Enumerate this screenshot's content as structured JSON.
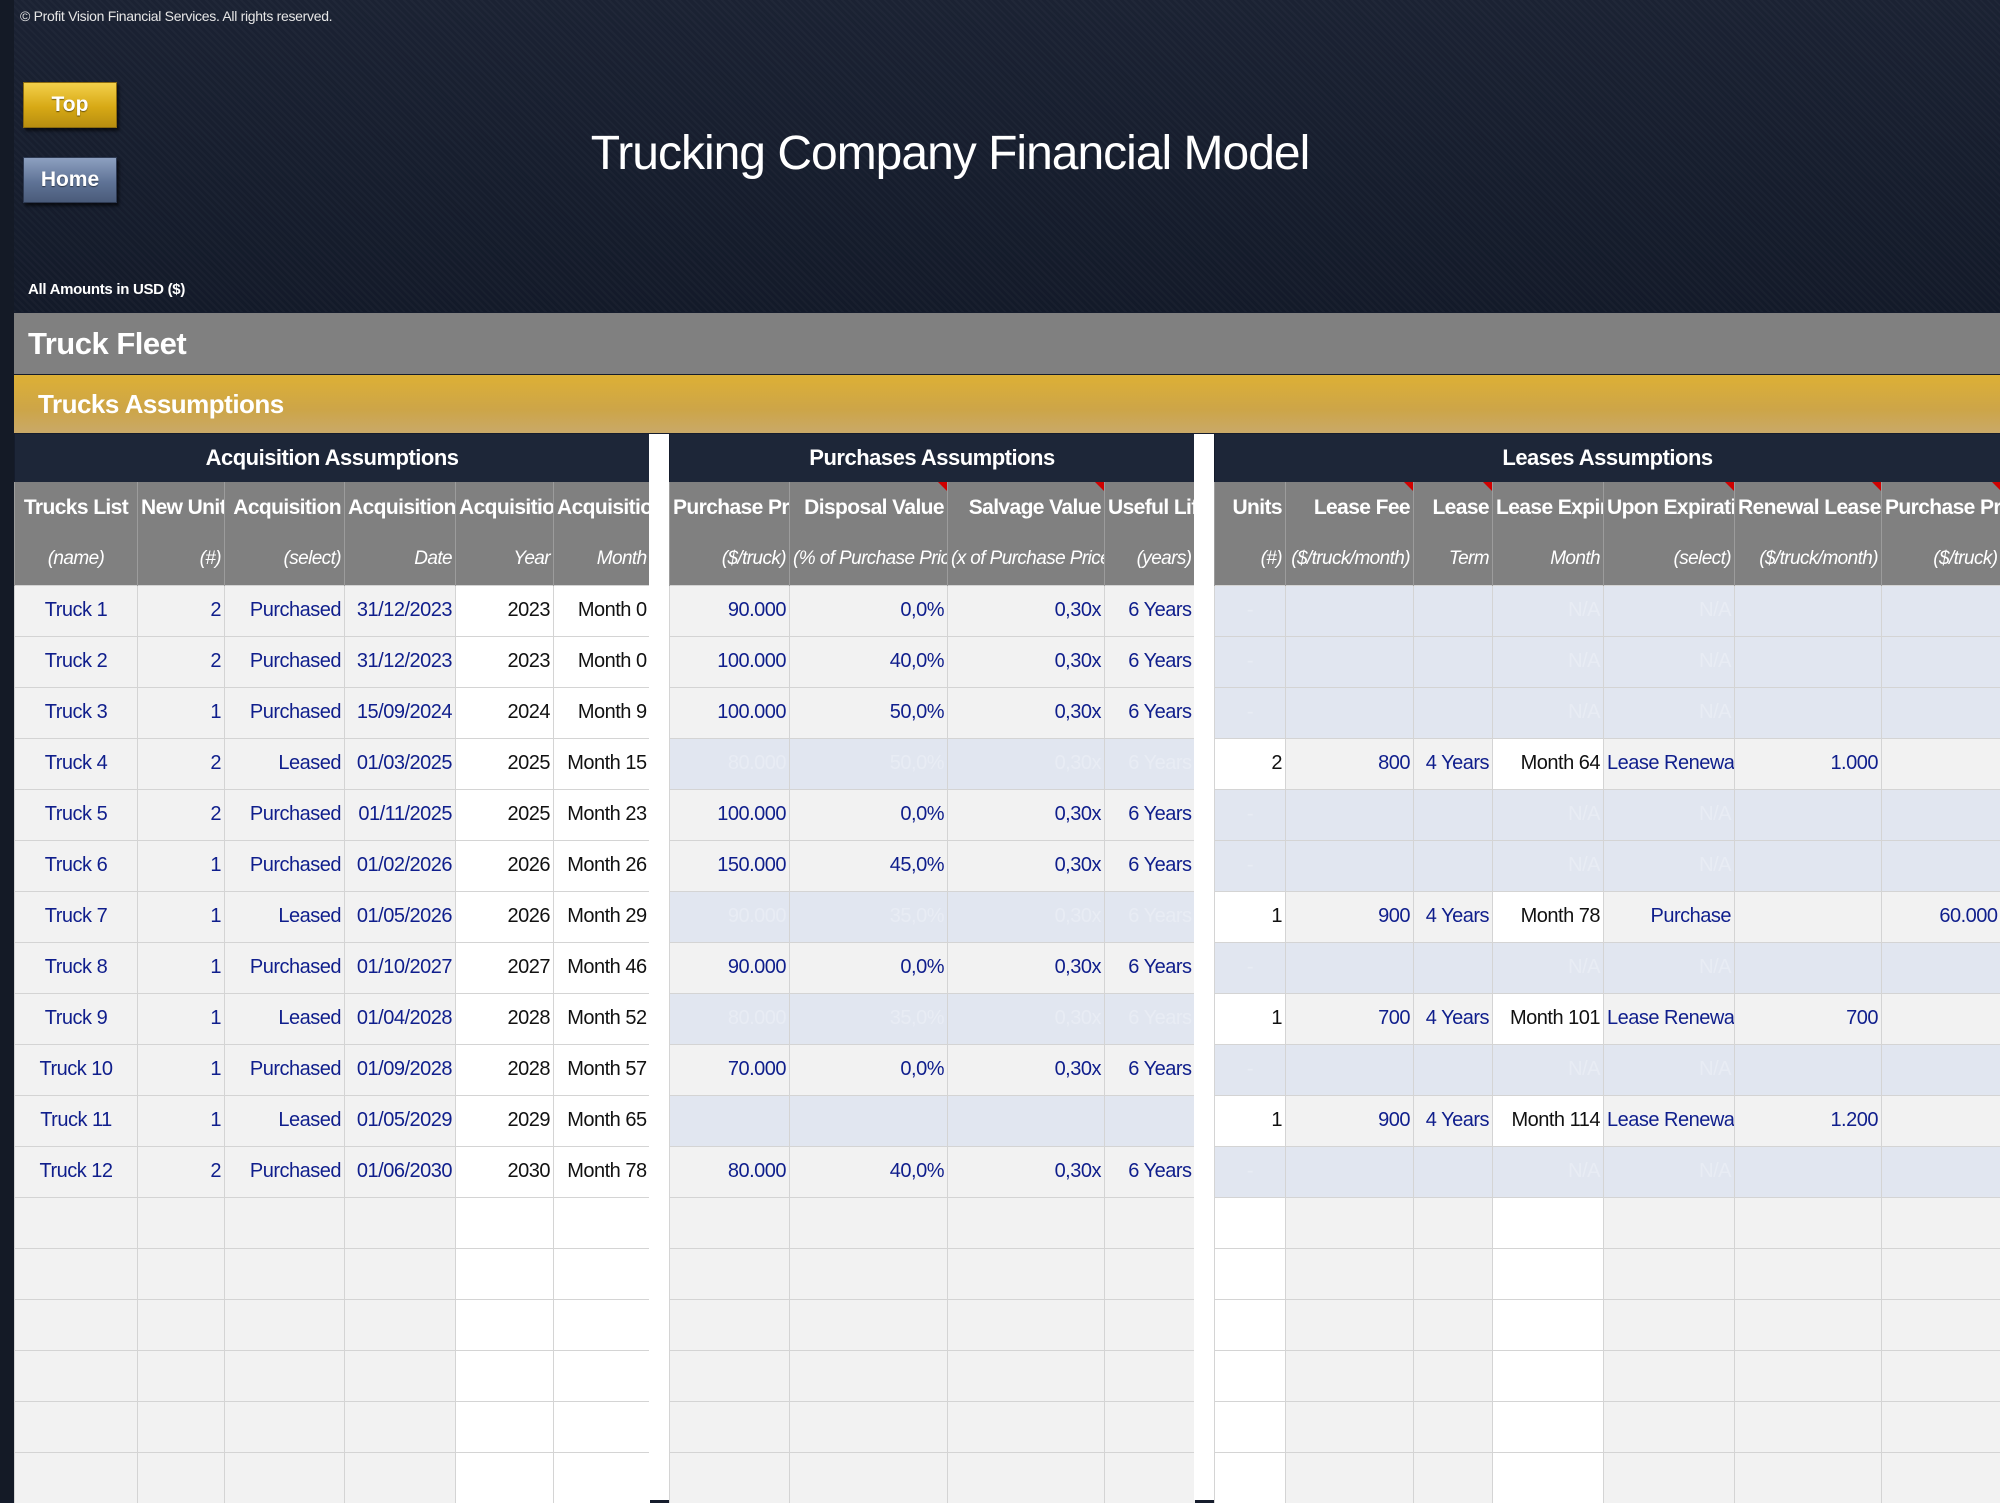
{
  "header": {
    "copyright": "© Profit Vision Financial Services. All rights reserved.",
    "top_label": "Top",
    "home_label": "Home",
    "title": "Trucking Company Financial Model",
    "amounts": "All Amounts in  USD ($)"
  },
  "sections": {
    "fleet": "Truck Fleet",
    "assumptions": "Trucks Assumptions"
  },
  "acq": {
    "group": "Acquisition Assumptions",
    "h1": [
      "Trucks List",
      "New Units",
      "Acquisition",
      "Acquisition",
      "Acquisition",
      "Acquisition"
    ],
    "h2": [
      "(name)",
      "(#)",
      "(select)",
      "Date",
      "Year",
      "Month"
    ]
  },
  "pur": {
    "group": "Purchases Assumptions",
    "h1": [
      "Purchase Price",
      "Disposal Value",
      "Salvage Value",
      "Useful Life"
    ],
    "h2": [
      "($/truck)",
      "(% of Purchase Price)",
      "(x of Purchase Price)",
      "(years)"
    ]
  },
  "lea": {
    "group": "Leases Assumptions",
    "h1": [
      "Units",
      "Lease Fee",
      "Lease",
      "Lease Expiry",
      "Upon Expiration",
      "Renewal Lease Fee",
      "Purchase Price"
    ],
    "h2": [
      "(#)",
      "($/truck/month)",
      "Term",
      "Month",
      "(select)",
      "($/truck/month)",
      "($/truck)"
    ]
  },
  "rows": [
    {
      "name": "Truck 1",
      "units": "2",
      "acq": "Purchased",
      "date": "31/12/2023",
      "year": "2023",
      "month": "Month 0",
      "price": "90.000",
      "disposal": "0,0%",
      "salvage": "0,30x",
      "life": "6 Years",
      "l_units": "-",
      "l_fee": "",
      "l_term": "",
      "l_expiry": "N/A",
      "l_upon": "N/A",
      "l_renew": "",
      "l_price": ""
    },
    {
      "name": "Truck 2",
      "units": "2",
      "acq": "Purchased",
      "date": "31/12/2023",
      "year": "2023",
      "month": "Month 0",
      "price": "100.000",
      "disposal": "40,0%",
      "salvage": "0,30x",
      "life": "6 Years",
      "l_units": "-",
      "l_fee": "",
      "l_term": "",
      "l_expiry": "N/A",
      "l_upon": "N/A",
      "l_renew": "",
      "l_price": ""
    },
    {
      "name": "Truck 3",
      "units": "1",
      "acq": "Purchased",
      "date": "15/09/2024",
      "year": "2024",
      "month": "Month 9",
      "price": "100.000",
      "disposal": "50,0%",
      "salvage": "0,30x",
      "life": "6 Years",
      "l_units": "-",
      "l_fee": "",
      "l_term": "",
      "l_expiry": "N/A",
      "l_upon": "N/A",
      "l_renew": "",
      "l_price": ""
    },
    {
      "name": "Truck 4",
      "units": "2",
      "acq": "Leased",
      "date": "01/03/2025",
      "year": "2025",
      "month": "Month 15",
      "price": "80.000",
      "disposal": "50,0%",
      "salvage": "0,30x",
      "life": "6 Years",
      "l_units": "2",
      "l_fee": "800",
      "l_term": "4 Years",
      "l_expiry": "Month 64",
      "l_upon": "Lease Renewal",
      "l_renew": "1.000",
      "l_price": ""
    },
    {
      "name": "Truck 5",
      "units": "2",
      "acq": "Purchased",
      "date": "01/11/2025",
      "year": "2025",
      "month": "Month 23",
      "price": "100.000",
      "disposal": "0,0%",
      "salvage": "0,30x",
      "life": "6 Years",
      "l_units": "-",
      "l_fee": "",
      "l_term": "",
      "l_expiry": "N/A",
      "l_upon": "N/A",
      "l_renew": "",
      "l_price": ""
    },
    {
      "name": "Truck 6",
      "units": "1",
      "acq": "Purchased",
      "date": "01/02/2026",
      "year": "2026",
      "month": "Month 26",
      "price": "150.000",
      "disposal": "45,0%",
      "salvage": "0,30x",
      "life": "6 Years",
      "l_units": "-",
      "l_fee": "",
      "l_term": "",
      "l_expiry": "N/A",
      "l_upon": "N/A",
      "l_renew": "",
      "l_price": ""
    },
    {
      "name": "Truck 7",
      "units": "1",
      "acq": "Leased",
      "date": "01/05/2026",
      "year": "2026",
      "month": "Month 29",
      "price": "90.000",
      "disposal": "35,0%",
      "salvage": "0,30x",
      "life": "6 Years",
      "l_units": "1",
      "l_fee": "900",
      "l_term": "4 Years",
      "l_expiry": "Month 78",
      "l_upon": "Purchase",
      "l_renew": "",
      "l_price": "60.000"
    },
    {
      "name": "Truck 8",
      "units": "1",
      "acq": "Purchased",
      "date": "01/10/2027",
      "year": "2027",
      "month": "Month 46",
      "price": "90.000",
      "disposal": "0,0%",
      "salvage": "0,30x",
      "life": "6 Years",
      "l_units": "-",
      "l_fee": "",
      "l_term": "",
      "l_expiry": "N/A",
      "l_upon": "N/A",
      "l_renew": "",
      "l_price": ""
    },
    {
      "name": "Truck 9",
      "units": "1",
      "acq": "Leased",
      "date": "01/04/2028",
      "year": "2028",
      "month": "Month 52",
      "price": "80.000",
      "disposal": "35,0%",
      "salvage": "0,30x",
      "life": "6 Years",
      "l_units": "1",
      "l_fee": "700",
      "l_term": "4 Years",
      "l_expiry": "Month 101",
      "l_upon": "Lease Renewal",
      "l_renew": "700",
      "l_price": ""
    },
    {
      "name": "Truck 10",
      "units": "1",
      "acq": "Purchased",
      "date": "01/09/2028",
      "year": "2028",
      "month": "Month 57",
      "price": "70.000",
      "disposal": "0,0%",
      "salvage": "0,30x",
      "life": "6 Years",
      "l_units": "-",
      "l_fee": "",
      "l_term": "",
      "l_expiry": "N/A",
      "l_upon": "N/A",
      "l_renew": "",
      "l_price": ""
    },
    {
      "name": "Truck 11",
      "units": "1",
      "acq": "Leased",
      "date": "01/05/2029",
      "year": "2029",
      "month": "Month 65",
      "price": "",
      "disposal": "",
      "salvage": "",
      "life": "",
      "l_units": "1",
      "l_fee": "900",
      "l_term": "4 Years",
      "l_expiry": "Month 114",
      "l_upon": "Lease Renewal",
      "l_renew": "1.200",
      "l_price": ""
    },
    {
      "name": "Truck 12",
      "units": "2",
      "acq": "Purchased",
      "date": "01/06/2030",
      "year": "2030",
      "month": "Month 78",
      "price": "80.000",
      "disposal": "40,0%",
      "salvage": "0,30x",
      "life": "6 Years",
      "l_units": "-",
      "l_fee": "",
      "l_term": "",
      "l_expiry": "N/A",
      "l_upon": "N/A",
      "l_renew": "",
      "l_price": ""
    }
  ],
  "colors": {
    "header_bg": "#151c2c",
    "group_header": "#1d2638",
    "column_header": "#808080",
    "gold_band": "#d4a92c",
    "input_blue": "#0f1e8c",
    "disabled_cell": "#e1e6f0"
  },
  "icons": [
    "comment-marker-icon"
  ]
}
